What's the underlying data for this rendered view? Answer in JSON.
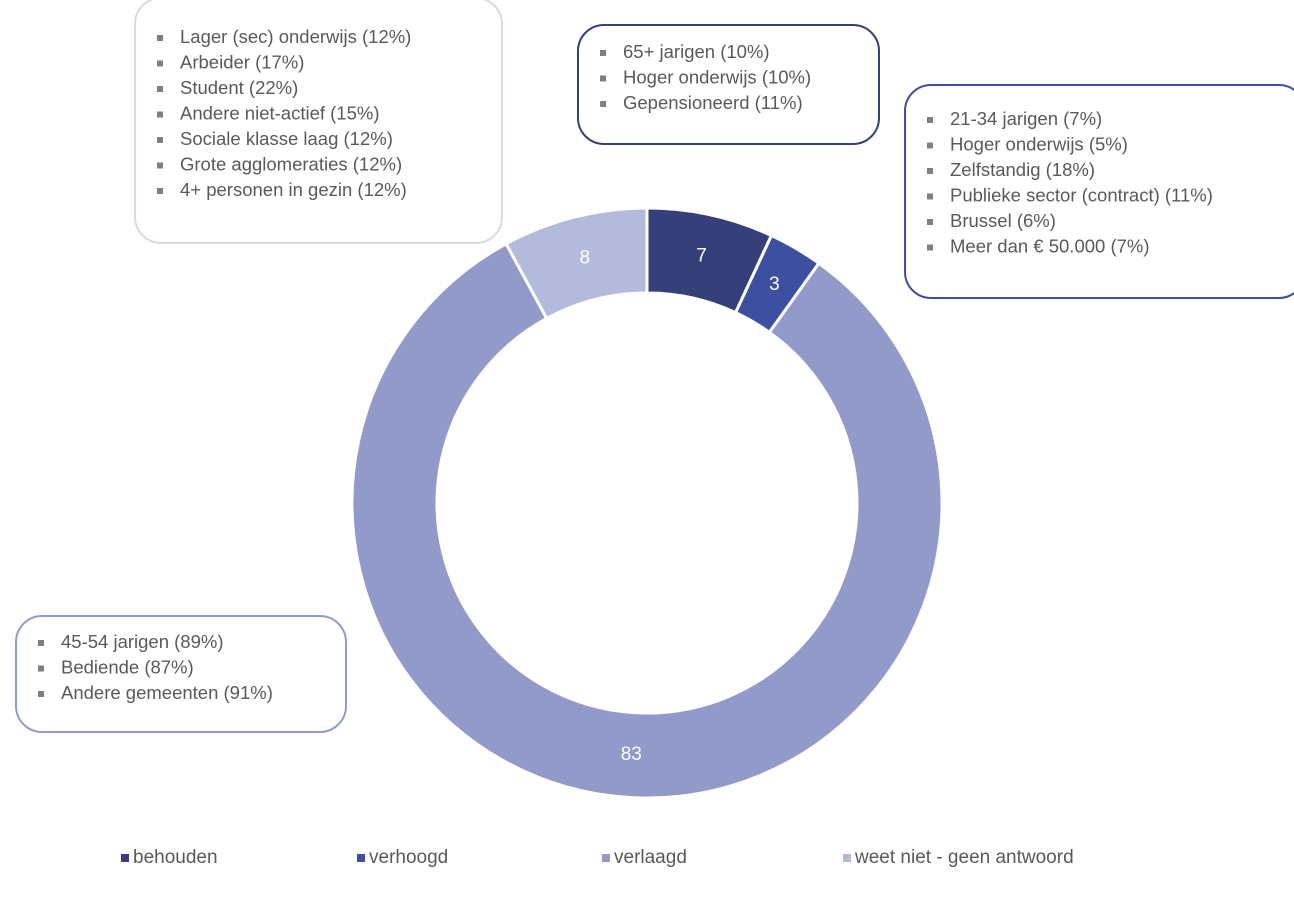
{
  "chart_data": {
    "type": "pie",
    "donut": true,
    "categories": [
      "behouden",
      "verhoogd",
      "verlaagd",
      "weet niet - geen antwoord"
    ],
    "values": [
      7,
      3,
      83,
      8
    ],
    "colors": [
      "#353f7a",
      "#3d4fa0",
      "#929ac9",
      "#b4badb"
    ],
    "legend": "bottom",
    "annotations": [
      {
        "color": "#d6d9ea",
        "lines": [
          "Lager (sec) onderwijs (12%)",
          "Arbeider (17%)",
          "Student (22%)",
          "Andere niet-actief (15%)",
          "Sociale klasse laag (12%)",
          "Grote agglomeraties (12%)",
          "4+ personen in gezin (12%)"
        ]
      },
      {
        "color": "#353f7a",
        "lines": [
          "65+ jarigen (10%)",
          "Hoger onderwijs (10%)",
          "Gepensioneerd (11%)"
        ]
      },
      {
        "color": "#3d4fa0",
        "lines": [
          "21-34 jarigen (7%)",
          "Hoger onderwijs (5%)",
          "Zelfstandig (18%)",
          "Publieke sector (contract) (11%)",
          "Brussel (6%)",
          "Meer dan € 50.000 (7%)"
        ]
      },
      {
        "color": "#929ac9",
        "lines": [
          "45-54 jarigen (89%)",
          "Bediende (87%)",
          "Andere gemeenten (91%)"
        ]
      }
    ]
  }
}
